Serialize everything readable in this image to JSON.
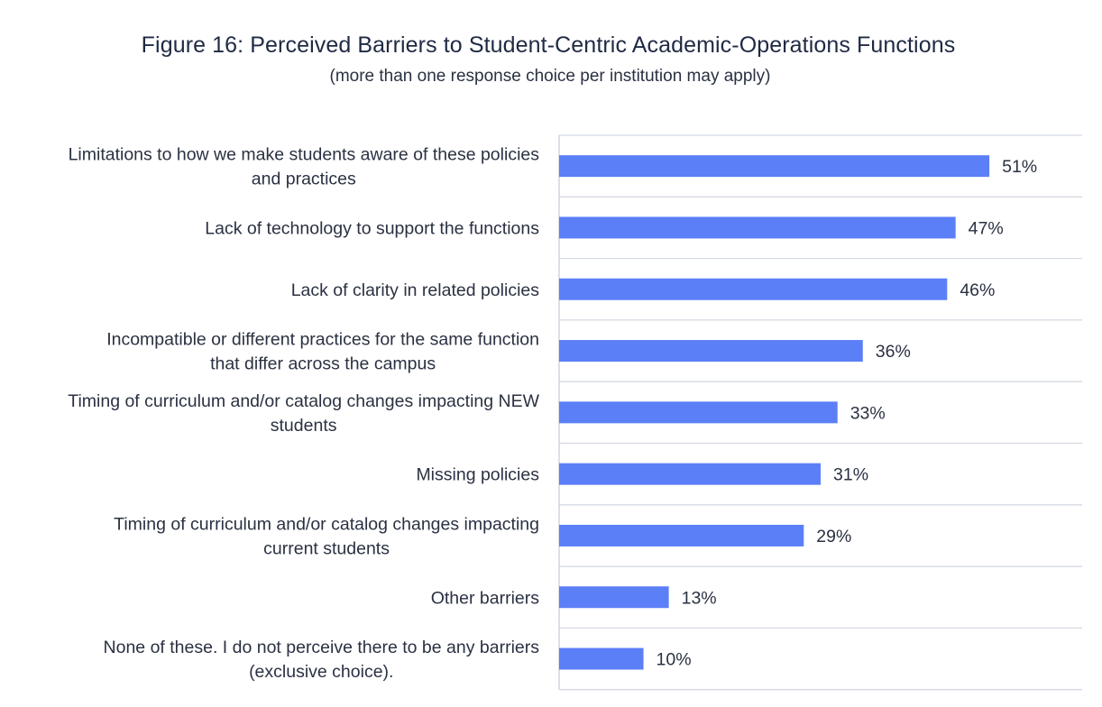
{
  "title": "Figure 16: Perceived Barriers to Student-Centric Academic-Operations Functions",
  "subtitle": "(more than one response choice per institution may apply)",
  "colors": {
    "bar": "#5b7ff7",
    "grid": "#d4d9e3",
    "axis": "#c9ced8"
  },
  "chart_data": {
    "type": "bar",
    "orientation": "horizontal",
    "categories": [
      [
        "Limitations to how we make students aware of these policies",
        "and practices"
      ],
      [
        "Lack of technology to support the functions"
      ],
      [
        "Lack of clarity in related policies"
      ],
      [
        "Incompatible or different practices for the same function",
        "that differ across the campus"
      ],
      [
        "Timing of curriculum and/or catalog changes impacting NEW",
        "students"
      ],
      [
        "Missing policies"
      ],
      [
        "Timing of curriculum and/or catalog changes impacting",
        "current students"
      ],
      [
        "Other barriers"
      ],
      [
        "None of these. I do not perceive there to be any barriers",
        "(exclusive choice)."
      ]
    ],
    "values": [
      51,
      47,
      46,
      36,
      33,
      31,
      29,
      13,
      10
    ],
    "value_labels": [
      "51%",
      "47%",
      "46%",
      "36%",
      "33%",
      "31%",
      "29%",
      "13%",
      "10%"
    ],
    "xlim": [
      0,
      62
    ],
    "grid": true
  }
}
